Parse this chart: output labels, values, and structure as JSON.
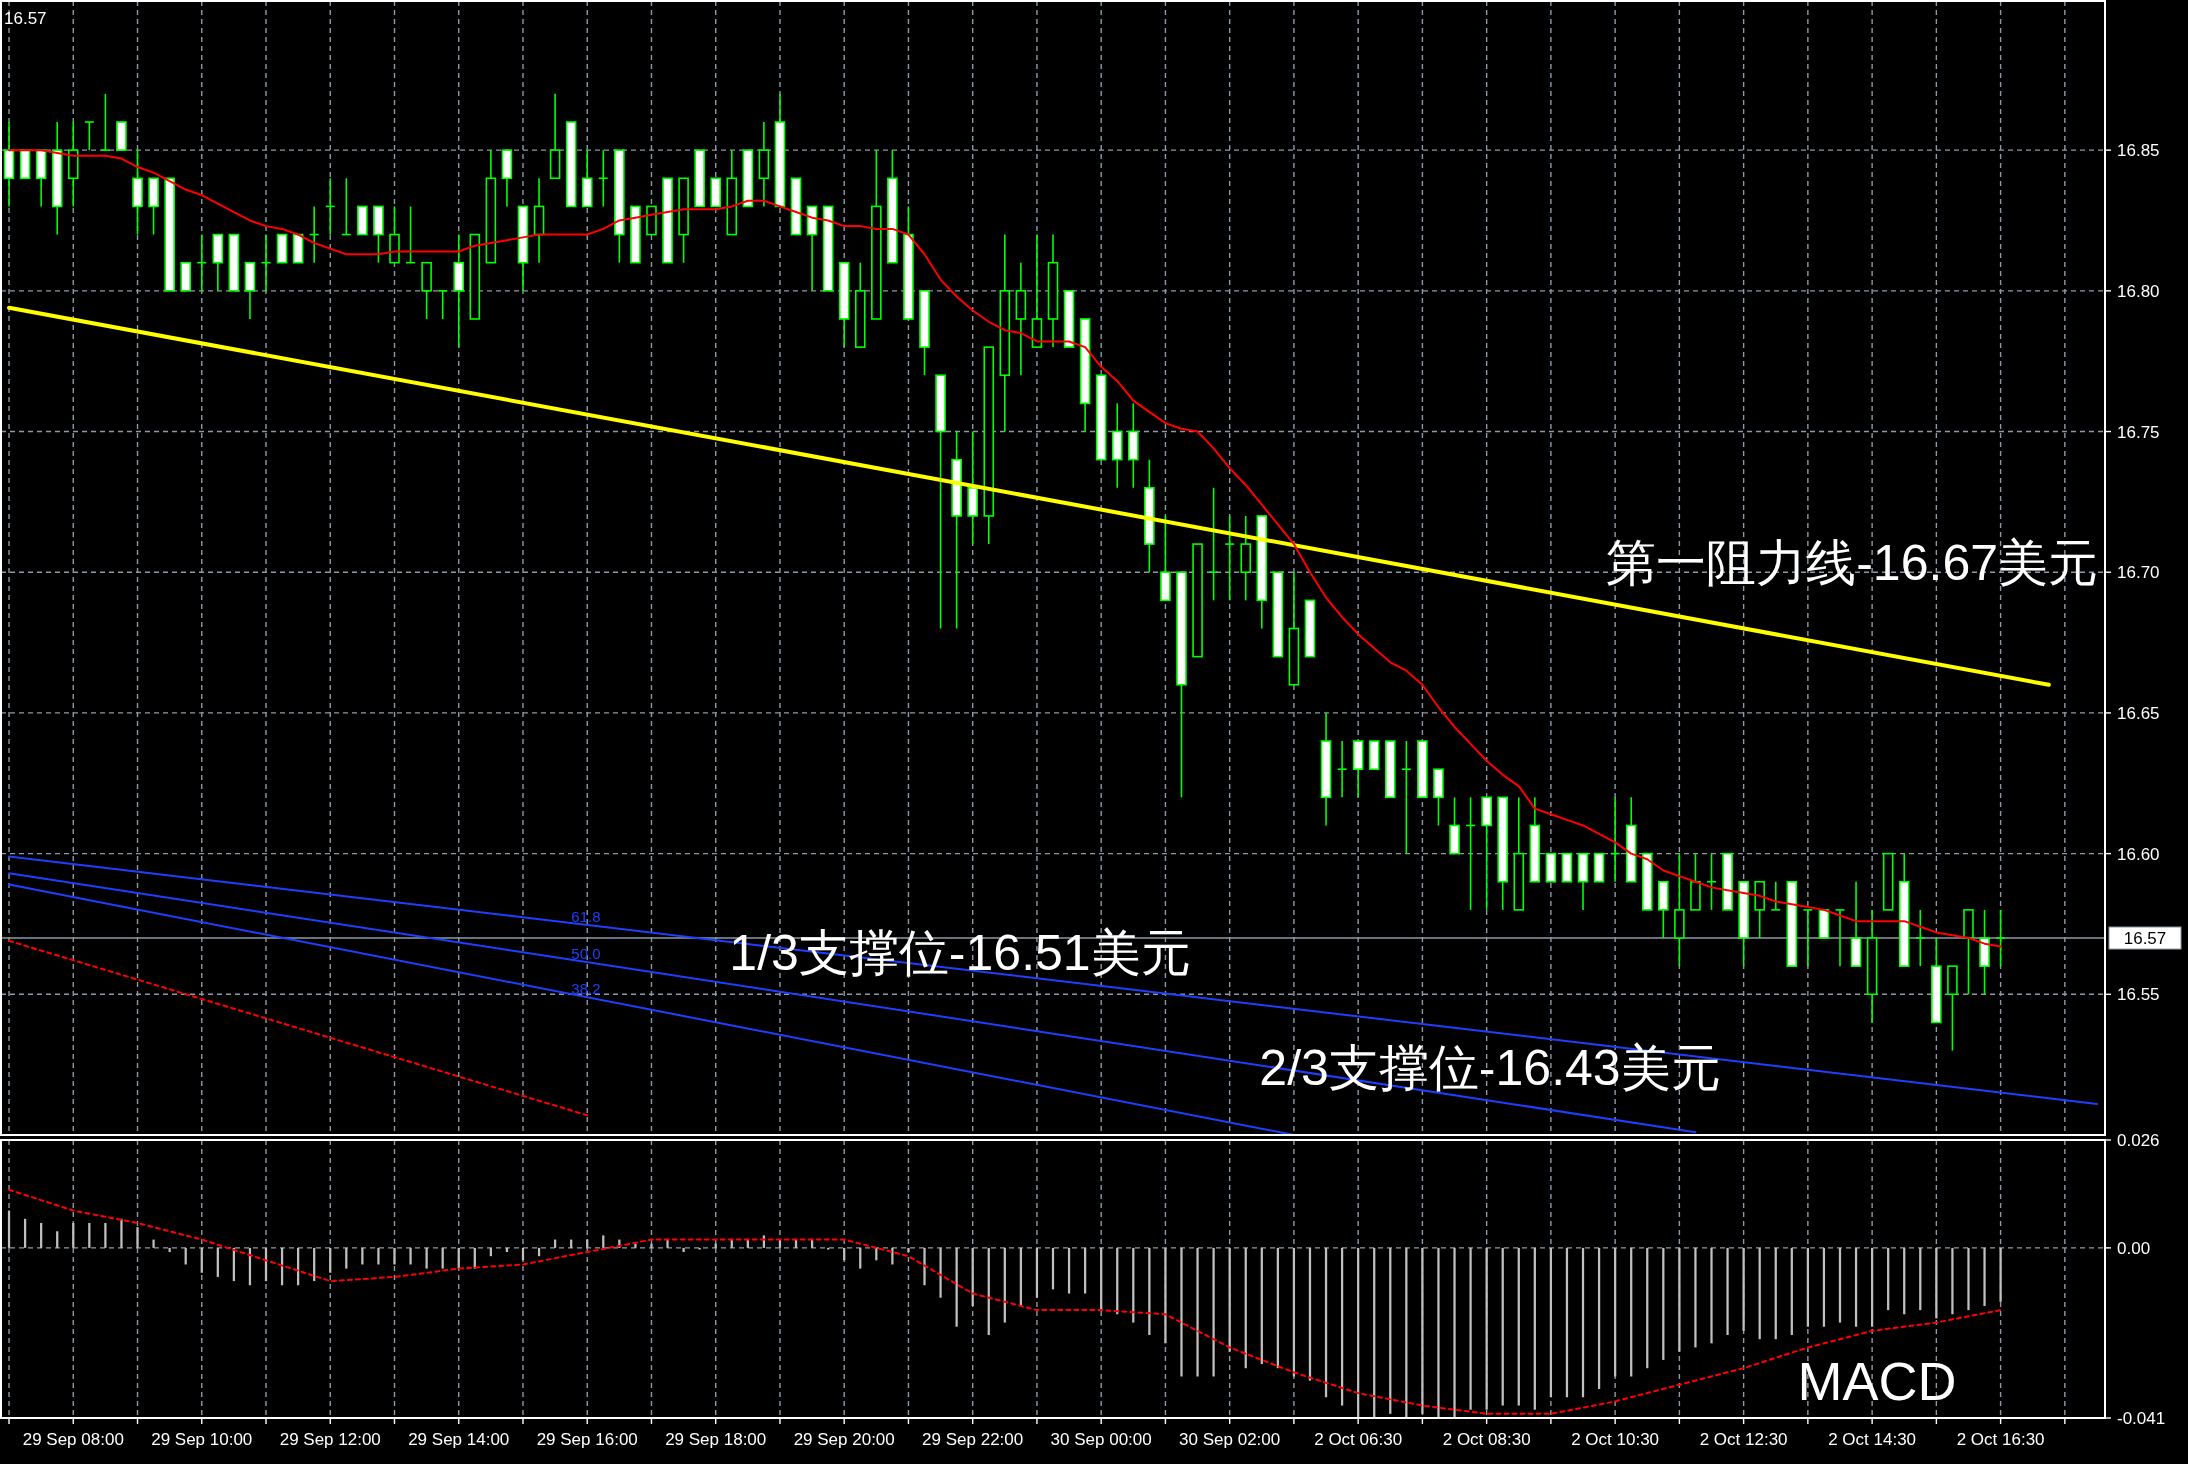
{
  "chart_data": [
    {
      "type": "candlestick",
      "color": "#00ff00",
      "categories": [
        null,
        null,
        null,
        null,
        null,
        null,
        null,
        null,
        null,
        null,
        null,
        null,
        null,
        null,
        null,
        null,
        null,
        null,
        null,
        null,
        null,
        null,
        null,
        null,
        null,
        null,
        null,
        null,
        null,
        null,
        null,
        null,
        null,
        null,
        null,
        null,
        null,
        null,
        null,
        null,
        null,
        null,
        null,
        null,
        null,
        null,
        null,
        null,
        null,
        null,
        null,
        null,
        null,
        null,
        null,
        null,
        null,
        null,
        null,
        null,
        null,
        null,
        null,
        null,
        null,
        null,
        null,
        null,
        null,
        null,
        null,
        null,
        null,
        null,
        null,
        null,
        null,
        null,
        null,
        null,
        null,
        null,
        null,
        null,
        null,
        null,
        null,
        null,
        null,
        null,
        null,
        null,
        null,
        null,
        null,
        null,
        null,
        null,
        null,
        null,
        null,
        null,
        null,
        null,
        null,
        null,
        null,
        null,
        null,
        null,
        null,
        null,
        null,
        null,
        null,
        null,
        null,
        null,
        null,
        null,
        null,
        null,
        null,
        null,
        null,
        null,
        null,
        null,
        null,
        null,
        null
      ],
      "ohlc": [
        [
          16.85,
          16.86,
          16.83,
          16.84
        ],
        [
          16.85,
          16.85,
          16.84,
          16.84
        ],
        [
          16.85,
          16.85,
          16.83,
          16.84
        ],
        [
          16.85,
          16.86,
          16.82,
          16.83
        ],
        [
          16.84,
          16.86,
          16.83,
          16.85
        ],
        [
          16.86,
          16.86,
          16.85,
          16.86
        ],
        [
          16.85,
          16.87,
          16.85,
          16.85
        ],
        [
          16.86,
          16.86,
          16.85,
          16.85
        ],
        [
          16.84,
          16.85,
          16.82,
          16.83
        ],
        [
          16.84,
          16.84,
          16.82,
          16.83
        ],
        [
          16.84,
          16.84,
          16.8,
          16.8
        ],
        [
          16.81,
          16.81,
          16.8,
          16.8
        ],
        [
          16.81,
          16.82,
          16.8,
          16.81
        ],
        [
          16.82,
          16.82,
          16.8,
          16.81
        ],
        [
          16.82,
          16.82,
          16.8,
          16.8
        ],
        [
          16.81,
          16.81,
          16.79,
          16.8
        ],
        [
          16.81,
          16.82,
          16.8,
          16.81
        ],
        [
          16.82,
          16.82,
          16.81,
          16.81
        ],
        [
          16.82,
          16.82,
          16.81,
          16.81
        ],
        [
          16.82,
          16.83,
          16.81,
          16.82
        ],
        [
          16.83,
          16.84,
          16.82,
          16.83
        ],
        [
          16.82,
          16.84,
          16.82,
          16.82
        ],
        [
          16.83,
          16.83,
          16.82,
          16.82
        ],
        [
          16.83,
          16.83,
          16.81,
          16.82
        ],
        [
          16.81,
          16.83,
          16.81,
          16.82
        ],
        [
          16.81,
          16.83,
          16.81,
          16.81
        ],
        [
          16.8,
          16.81,
          16.79,
          16.81
        ],
        [
          16.8,
          16.8,
          16.79,
          16.8
        ],
        [
          16.81,
          16.82,
          16.78,
          16.8
        ],
        [
          16.79,
          16.82,
          16.79,
          16.82
        ],
        [
          16.81,
          16.85,
          16.81,
          16.84
        ],
        [
          16.85,
          16.85,
          16.83,
          16.84
        ],
        [
          16.83,
          16.83,
          16.8,
          16.81
        ],
        [
          16.82,
          16.84,
          16.81,
          16.83
        ],
        [
          16.84,
          16.87,
          16.84,
          16.85
        ],
        [
          16.86,
          16.86,
          16.83,
          16.83
        ],
        [
          16.84,
          16.85,
          16.83,
          16.83
        ],
        [
          16.84,
          16.85,
          16.83,
          16.84
        ],
        [
          16.85,
          16.85,
          16.81,
          16.82
        ],
        [
          16.83,
          16.83,
          16.81,
          16.81
        ],
        [
          16.82,
          16.83,
          16.82,
          16.83
        ],
        [
          16.84,
          16.84,
          16.81,
          16.81
        ],
        [
          16.82,
          16.84,
          16.81,
          16.84
        ],
        [
          16.85,
          16.85,
          16.83,
          16.83
        ],
        [
          16.84,
          16.84,
          16.83,
          16.83
        ],
        [
          16.82,
          16.85,
          16.82,
          16.84
        ],
        [
          16.85,
          16.85,
          16.83,
          16.83
        ],
        [
          16.84,
          16.86,
          16.83,
          16.85
        ],
        [
          16.86,
          16.87,
          16.83,
          16.83
        ],
        [
          16.84,
          16.84,
          16.82,
          16.82
        ],
        [
          16.83,
          16.83,
          16.8,
          16.82
        ],
        [
          16.83,
          16.83,
          16.8,
          16.8
        ],
        [
          16.81,
          16.81,
          16.78,
          16.79
        ],
        [
          16.78,
          16.81,
          16.78,
          16.8
        ],
        [
          16.79,
          16.85,
          16.79,
          16.83
        ],
        [
          16.84,
          16.85,
          16.81,
          16.81
        ],
        [
          16.82,
          16.83,
          16.79,
          16.79
        ],
        [
          16.8,
          16.8,
          16.77,
          16.78
        ],
        [
          16.77,
          16.77,
          16.68,
          16.75
        ],
        [
          16.74,
          16.75,
          16.68,
          16.72
        ],
        [
          16.73,
          16.75,
          16.71,
          16.72
        ],
        [
          16.72,
          16.78,
          16.71,
          16.78
        ],
        [
          16.77,
          16.82,
          16.75,
          16.8
        ],
        [
          16.79,
          16.81,
          16.77,
          16.8
        ],
        [
          16.78,
          16.82,
          16.78,
          16.79
        ],
        [
          16.79,
          16.82,
          16.78,
          16.81
        ],
        [
          16.8,
          16.8,
          16.78,
          16.78
        ],
        [
          16.79,
          16.79,
          16.75,
          16.76
        ],
        [
          16.77,
          16.77,
          16.74,
          16.74
        ],
        [
          16.75,
          16.76,
          16.73,
          16.74
        ],
        [
          16.75,
          16.76,
          16.73,
          16.74
        ],
        [
          16.73,
          16.74,
          16.7,
          16.71
        ],
        [
          16.7,
          16.72,
          16.69,
          16.69
        ],
        [
          16.7,
          16.7,
          16.62,
          16.66
        ],
        [
          16.67,
          16.71,
          16.67,
          16.71
        ],
        [
          16.7,
          16.73,
          16.69,
          16.7
        ],
        [
          16.71,
          16.72,
          16.69,
          16.71
        ],
        [
          16.7,
          16.72,
          16.69,
          16.71
        ],
        [
          16.72,
          16.72,
          16.68,
          16.69
        ],
        [
          16.7,
          16.7,
          16.67,
          16.67
        ],
        [
          16.66,
          16.7,
          16.66,
          16.68
        ],
        [
          16.69,
          16.69,
          16.67,
          16.67
        ],
        [
          16.64,
          16.65,
          16.61,
          16.62
        ],
        [
          16.63,
          16.64,
          16.62,
          16.63
        ],
        [
          16.64,
          16.64,
          16.62,
          16.63
        ],
        [
          16.64,
          16.64,
          16.63,
          16.63
        ],
        [
          16.64,
          16.64,
          16.62,
          16.62
        ],
        [
          16.63,
          16.64,
          16.6,
          16.63
        ],
        [
          16.64,
          16.64,
          16.62,
          16.62
        ],
        [
          16.63,
          16.63,
          16.61,
          16.62
        ],
        [
          16.61,
          16.62,
          16.6,
          16.6
        ],
        [
          16.61,
          16.62,
          16.58,
          16.61
        ],
        [
          16.62,
          16.62,
          16.58,
          16.61
        ],
        [
          16.62,
          16.62,
          16.58,
          16.59
        ],
        [
          16.58,
          16.62,
          16.58,
          16.6
        ],
        [
          16.61,
          16.62,
          16.59,
          16.59
        ],
        [
          16.6,
          16.6,
          16.59,
          16.59
        ],
        [
          16.6,
          16.6,
          16.59,
          16.59
        ],
        [
          16.6,
          16.6,
          16.58,
          16.59
        ],
        [
          16.6,
          16.6,
          16.59,
          16.59
        ],
        [
          16.6,
          16.62,
          16.59,
          16.6
        ],
        [
          16.61,
          16.62,
          16.59,
          16.59
        ],
        [
          16.6,
          16.6,
          16.58,
          16.58
        ],
        [
          16.59,
          16.59,
          16.57,
          16.58
        ],
        [
          16.57,
          16.6,
          16.56,
          16.58
        ],
        [
          16.58,
          16.6,
          16.58,
          16.59
        ],
        [
          16.59,
          16.6,
          16.58,
          16.59
        ],
        [
          16.6,
          16.6,
          16.58,
          16.58
        ],
        [
          16.59,
          16.59,
          16.56,
          16.57
        ],
        [
          16.58,
          16.59,
          16.57,
          16.59
        ],
        [
          16.58,
          16.59,
          16.58,
          16.58
        ],
        [
          16.59,
          16.59,
          16.56,
          16.56
        ],
        [
          16.58,
          16.58,
          16.56,
          16.58
        ],
        [
          16.58,
          16.58,
          16.57,
          16.57
        ],
        [
          16.58,
          16.58,
          16.56,
          16.58
        ],
        [
          16.57,
          16.59,
          16.56,
          16.56
        ],
        [
          16.55,
          16.58,
          16.54,
          16.57
        ],
        [
          16.58,
          16.6,
          16.58,
          16.6
        ],
        [
          16.59,
          16.6,
          16.56,
          16.56
        ],
        [
          16.57,
          16.58,
          16.56,
          16.57
        ],
        [
          16.56,
          16.57,
          16.54,
          16.54
        ],
        [
          16.55,
          16.56,
          16.53,
          16.56
        ],
        [
          16.57,
          16.58,
          16.55,
          16.58
        ],
        [
          16.57,
          16.58,
          16.55,
          16.56
        ],
        [
          16.57,
          16.58,
          16.56,
          16.57
        ],
        null,
        null,
        null,
        null,
        null,
        null
      ],
      "series": [
        {
          "type": "line",
          "name": "61.8",
          "color": "#1f3fff",
          "values": [
            16.599,
            null,
            null,
            null,
            null,
            null,
            null,
            null,
            null,
            null,
            null,
            null,
            null,
            null,
            null,
            null,
            null,
            null,
            null,
            null,
            null,
            null,
            null,
            null,
            null,
            null,
            null,
            null,
            null,
            null,
            null,
            null,
            null,
            null,
            null,
            null,
            null,
            null,
            null,
            null,
            null,
            null,
            null,
            null,
            null,
            null,
            null,
            null,
            null,
            null,
            null,
            null,
            null,
            null,
            null,
            null,
            null,
            null,
            null,
            null,
            null,
            null,
            null,
            null,
            null,
            null,
            null,
            null,
            null,
            null,
            null,
            null,
            null,
            null,
            null,
            null,
            null,
            null,
            null,
            null,
            null,
            null,
            null,
            null,
            null,
            null,
            null,
            null,
            null,
            null,
            null,
            null,
            null,
            null,
            null,
            null,
            null,
            null,
            null,
            null,
            null,
            null,
            null,
            null,
            null,
            null,
            null,
            null,
            null,
            null,
            null,
            null,
            null,
            null,
            null,
            null,
            null,
            null,
            null,
            null,
            null,
            null,
            null,
            null,
            null,
            null,
            null,
            null,
            null,
            null,
            16.511
          ]
        },
        {
          "type": "line",
          "name": "50.0",
          "color": "#1f3fff",
          "values": [
            16.593,
            null,
            null,
            null,
            null,
            null,
            null,
            null,
            null,
            null,
            null,
            null,
            null,
            null,
            null,
            null,
            null,
            null,
            null,
            null,
            null,
            null,
            null,
            null,
            null,
            null,
            null,
            null,
            null,
            null,
            null,
            null,
            null,
            null,
            null,
            null,
            null,
            null,
            null,
            null,
            null,
            null,
            null,
            null,
            null,
            null,
            null,
            null,
            null,
            null,
            null,
            null,
            null,
            null,
            null,
            null,
            null,
            null,
            null,
            null,
            null,
            null,
            null,
            null,
            null,
            null,
            null,
            null,
            null,
            null,
            null,
            null,
            null,
            null,
            null,
            null,
            null,
            null,
            null,
            null,
            null,
            null,
            null,
            null,
            null,
            null,
            null,
            null,
            null,
            null,
            null,
            null,
            null,
            null,
            null,
            null,
            null,
            null,
            null,
            null,
            null,
            null,
            null,
            null,
            null,
            16.501,
            null,
            null,
            null,
            null,
            null,
            null,
            null,
            null,
            null,
            null,
            null,
            null,
            null,
            null,
            null,
            null,
            null,
            null,
            null,
            null,
            null,
            null,
            null,
            null,
            null
          ]
        },
        {
          "type": "line",
          "name": "38.2",
          "color": "#1f3fff",
          "values": [
            16.589,
            null,
            null,
            null,
            null,
            null,
            null,
            null,
            null,
            null,
            null,
            null,
            null,
            null,
            null,
            null,
            null,
            null,
            null,
            null,
            null,
            null,
            null,
            null,
            null,
            null,
            null,
            null,
            null,
            null,
            null,
            null,
            null,
            null,
            null,
            null,
            null,
            null,
            null,
            null,
            null,
            null,
            null,
            null,
            null,
            null,
            null,
            null,
            null,
            null,
            null,
            null,
            null,
            null,
            null,
            null,
            null,
            null,
            null,
            null,
            null,
            null,
            null,
            null,
            null,
            null,
            null,
            null,
            null,
            null,
            null,
            null,
            null,
            null,
            null,
            null,
            null,
            null,
            null,
            null,
            16.5,
            null,
            null,
            null,
            null,
            null,
            null,
            null,
            null,
            null,
            null,
            null,
            null,
            null,
            null,
            null,
            null,
            null,
            null,
            null,
            null,
            null,
            null,
            null,
            null,
            null,
            null,
            null,
            null,
            null,
            null,
            null,
            null,
            null,
            null,
            null,
            null,
            null,
            null,
            null,
            null,
            null,
            null,
            null,
            null,
            null,
            null,
            null,
            null,
            null,
            null
          ]
        },
        {
          "type": "line",
          "color": "#ff0000",
          "line_style": "dotted",
          "values": [
            16.569,
            null,
            null,
            null,
            null,
            null,
            null,
            null,
            null,
            null,
            null,
            null,
            null,
            null,
            null,
            null,
            null,
            null,
            null,
            null,
            null,
            null,
            null,
            null,
            null,
            null,
            null,
            null,
            null,
            null,
            null,
            null,
            null,
            null,
            null,
            null,
            16.507,
            null,
            null,
            null,
            null,
            null,
            null,
            null,
            null,
            null,
            null,
            null,
            null,
            null,
            null,
            null,
            null,
            null,
            null,
            null,
            null,
            null,
            null,
            null,
            null,
            null,
            null,
            null,
            null,
            null,
            null,
            null,
            null,
            null,
            null,
            null,
            null,
            null,
            null,
            null,
            null,
            null,
            null,
            null,
            null,
            null,
            null,
            null,
            null,
            null,
            null,
            null,
            null,
            null,
            null,
            null,
            null,
            null,
            null,
            null,
            null,
            null,
            null,
            null,
            null,
            null,
            null,
            null,
            null,
            null,
            null,
            null,
            null,
            null,
            null,
            null,
            null,
            null,
            null,
            null,
            null,
            null,
            null,
            null,
            null,
            null,
            null,
            null,
            null,
            null,
            null,
            null,
            null,
            null,
            null
          ]
        },
        {
          "type": "line",
          "color": "#ffff00",
          "values": [
            16.794,
            null,
            null,
            null,
            null,
            null,
            null,
            null,
            null,
            null,
            null,
            null,
            null,
            null,
            null,
            null,
            null,
            null,
            null,
            null,
            null,
            null,
            null,
            null,
            null,
            null,
            null,
            null,
            null,
            null,
            null,
            null,
            null,
            null,
            null,
            null,
            null,
            null,
            null,
            null,
            null,
            null,
            null,
            null,
            null,
            null,
            null,
            null,
            null,
            null,
            null,
            null,
            null,
            null,
            null,
            null,
            null,
            null,
            null,
            null,
            null,
            null,
            null,
            null,
            null,
            null,
            null,
            null,
            null,
            null,
            null,
            null,
            null,
            null,
            null,
            null,
            null,
            null,
            null,
            null,
            null,
            null,
            null,
            null,
            null,
            null,
            null,
            null,
            null,
            null,
            null,
            null,
            null,
            null,
            null,
            null,
            null,
            null,
            null,
            null,
            null,
            null,
            null,
            null,
            null,
            null,
            null,
            null,
            null,
            null,
            null,
            null,
            null,
            null,
            null,
            null,
            null,
            null,
            null,
            null,
            null,
            null,
            null,
            null,
            null,
            null,
            null,
            16.66,
            null,
            null,
            null
          ]
        },
        {
          "type": "line",
          "color": "#ff0000",
          "values": [
            16.85,
            16.85,
            16.85,
            16.849,
            16.848,
            16.848,
            16.848,
            16.847,
            16.844,
            16.842,
            16.839,
            16.836,
            16.834,
            16.831,
            16.828,
            16.825,
            16.823,
            16.822,
            16.82,
            16.817,
            16.815,
            16.813,
            16.813,
            16.813,
            16.814,
            16.814,
            16.814,
            16.814,
            16.814,
            16.816,
            16.817,
            16.818,
            16.819,
            16.82,
            16.82,
            16.82,
            16.82,
            16.822,
            16.825,
            16.826,
            16.827,
            16.828,
            16.829,
            16.829,
            16.829,
            16.83,
            16.832,
            16.832,
            16.83,
            16.828,
            16.826,
            16.825,
            16.823,
            16.823,
            16.822,
            16.822,
            16.82,
            16.813,
            16.804,
            16.798,
            16.793,
            16.789,
            16.786,
            16.785,
            16.782,
            16.782,
            16.782,
            16.78,
            16.773,
            16.768,
            16.761,
            16.757,
            16.753,
            16.751,
            16.75,
            16.744,
            16.737,
            16.731,
            16.724,
            16.717,
            16.71,
            16.7,
            16.691,
            16.684,
            16.678,
            16.673,
            16.668,
            16.665,
            16.66,
            16.652,
            16.645,
            16.639,
            16.633,
            16.628,
            16.624,
            16.616,
            16.614,
            16.612,
            16.61,
            16.607,
            16.604,
            16.6,
            16.598,
            16.594,
            16.592,
            16.59,
            16.588,
            16.587,
            16.586,
            16.585,
            16.583,
            16.582,
            16.581,
            16.58,
            16.578,
            16.576,
            16.576,
            16.576,
            16.576,
            16.574,
            16.572,
            16.571,
            16.57,
            16.568,
            16.567,
            null,
            null,
            null,
            null,
            null,
            null
          ]
        }
      ],
      "ref_lines": [
        {
          "axis": "y",
          "value": 16.57,
          "label": "16.57",
          "color": "#8c9aa8"
        }
      ],
      "annotations": [
        "16.57",
        "第一阻力线-16.67美元",
        "1/3支撑位-16.51美元",
        "2/3支撑位-16.43美元"
      ],
      "ylim": [
        16.5,
        16.903
      ],
      "yticks": [
        16.55,
        {
          "value": 16.6,
          "label": "16.60"
        },
        16.65,
        {
          "value": 16.7,
          "label": "16.70"
        },
        16.75,
        {
          "value": 16.8,
          "label": "16.80"
        },
        16.85
      ],
      "tick_labels": "y",
      "grid": true
    },
    {
      "type": "bar",
      "title": "MACD",
      "categories": [
        null,
        null,
        null,
        null,
        "29 Sep 08:00",
        null,
        null,
        null,
        null,
        null,
        null,
        null,
        "29 Sep 10:00",
        null,
        null,
        null,
        null,
        null,
        null,
        null,
        "29 Sep 12:00",
        null,
        null,
        null,
        null,
        null,
        null,
        null,
        "29 Sep 14:00",
        null,
        null,
        null,
        null,
        null,
        null,
        null,
        "29 Sep 16:00",
        null,
        null,
        null,
        null,
        null,
        null,
        null,
        "29 Sep 18:00",
        null,
        null,
        null,
        null,
        null,
        null,
        null,
        "29 Sep 20:00",
        null,
        null,
        null,
        null,
        null,
        null,
        null,
        "29 Sep 22:00",
        null,
        null,
        null,
        null,
        null,
        null,
        null,
        "30 Sep 00:00",
        null,
        null,
        null,
        null,
        null,
        null,
        null,
        "30 Sep 02:00",
        null,
        null,
        null,
        null,
        null,
        null,
        null,
        "2 Oct 06:30",
        null,
        null,
        null,
        null,
        null,
        null,
        null,
        "2 Oct 08:30",
        null,
        null,
        null,
        null,
        null,
        null,
        null,
        "2 Oct 10:30",
        null,
        null,
        null,
        null,
        null,
        null,
        null,
        "2 Oct 12:30",
        null,
        null,
        null,
        null,
        null,
        null,
        null,
        "2 Oct 14:30",
        null,
        null,
        null,
        null,
        null,
        null,
        null,
        "2 Oct 16:30",
        null,
        null,
        null,
        null,
        null,
        null
      ],
      "series": [
        {
          "color": "#c0c0c0",
          "values": [
            0.009,
            0.007,
            0.006,
            0.004,
            0.006,
            0.006,
            0.006,
            0.007,
            0.005,
            0.002,
            -0.001,
            -0.004,
            -0.006,
            -0.007,
            -0.008,
            -0.009,
            -0.008,
            -0.009,
            -0.009,
            -0.008,
            -0.006,
            -0.005,
            -0.004,
            -0.004,
            -0.004,
            -0.004,
            -0.005,
            -0.005,
            -0.005,
            -0.005,
            -0.002,
            -0.001,
            -0.003,
            -0.002,
            0.002,
            0.002,
            0.002,
            0.003,
            0.002,
            0.001,
            0.001,
            0.002,
            -0.001,
            -0.0004,
            0.001,
            0.002,
            0.002,
            0.003,
            0.002,
            0.002,
            0.002,
            -0.0004,
            -0.003,
            -0.005,
            -0.003,
            -0.004,
            -0.001,
            -0.009,
            -0.012,
            -0.019,
            -0.014,
            -0.021,
            -0.018,
            -0.014,
            -0.012,
            -0.01,
            -0.011,
            -0.011,
            -0.015,
            -0.016,
            -0.018,
            -0.021,
            -0.023,
            -0.031,
            -0.031,
            -0.031,
            -0.025,
            -0.029,
            -0.028,
            -0.029,
            -0.031,
            -0.032,
            -0.036,
            -0.038,
            -0.041,
            -0.041,
            -0.04,
            -0.041,
            -0.04,
            -0.041,
            -0.041,
            -0.039,
            -0.039,
            -0.038,
            -0.038,
            -0.039,
            -0.036,
            -0.036,
            -0.036,
            -0.034,
            -0.031,
            -0.031,
            -0.029,
            -0.027,
            -0.025,
            -0.024,
            -0.023,
            -0.021,
            -0.02,
            -0.022,
            -0.022,
            -0.021,
            -0.019,
            -0.019,
            -0.018,
            -0.019,
            -0.019,
            -0.015,
            -0.016,
            -0.015,
            -0.017,
            -0.016,
            -0.015,
            -0.014,
            -0.013,
            null,
            null,
            null,
            null,
            null,
            null
          ]
        },
        {
          "type": "line",
          "color": "#ff0000",
          "line_style": "dotted",
          "values": [
            0.014,
            null,
            null,
            null,
            0.009,
            null,
            null,
            null,
            0.006,
            null,
            null,
            null,
            0.002,
            null,
            null,
            null,
            -0.003,
            null,
            null,
            null,
            -0.008,
            null,
            null,
            null,
            -0.007,
            null,
            null,
            null,
            -0.005,
            null,
            null,
            null,
            -0.004,
            null,
            null,
            null,
            -0.001,
            null,
            null,
            null,
            0.002,
            null,
            null,
            null,
            0.002,
            null,
            null,
            null,
            0.002,
            null,
            null,
            null,
            0.002,
            null,
            null,
            null,
            -0.002,
            null,
            null,
            null,
            -0.011,
            null,
            null,
            null,
            -0.015,
            null,
            null,
            null,
            -0.015,
            null,
            null,
            null,
            -0.016,
            null,
            null,
            null,
            -0.024,
            null,
            null,
            null,
            -0.03,
            null,
            null,
            null,
            -0.035,
            null,
            null,
            null,
            -0.038,
            null,
            null,
            null,
            -0.04,
            null,
            null,
            null,
            -0.04,
            null,
            null,
            null,
            -0.037,
            null,
            null,
            null,
            -0.033,
            null,
            null,
            null,
            -0.029,
            null,
            null,
            null,
            -0.024,
            null,
            null,
            null,
            -0.02,
            null,
            null,
            null,
            -0.018,
            null,
            null,
            null,
            -0.015,
            null,
            null,
            null,
            null,
            null,
            null
          ]
        }
      ],
      "ylim": [
        -0.041,
        0.026
      ],
      "yticks": [
        0.026,
        {
          "value": 0,
          "label": "0.00"
        },
        -0.041
      ],
      "grid": true
    }
  ]
}
